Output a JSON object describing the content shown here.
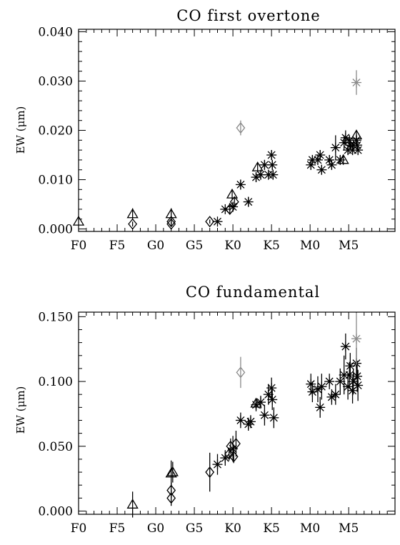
{
  "chart_data": [
    {
      "type": "scatter",
      "title": "CO first overtone",
      "ylabel": "EW (μm)",
      "xlabel": "",
      "x_ticks": [
        {
          "pos": 0,
          "label": "F0"
        },
        {
          "pos": 5,
          "label": "F5"
        },
        {
          "pos": 10,
          "label": "G0"
        },
        {
          "pos": 15,
          "label": "G5"
        },
        {
          "pos": 20,
          "label": "K0"
        },
        {
          "pos": 25,
          "label": "K5"
        },
        {
          "pos": 30,
          "label": "M0"
        },
        {
          "pos": 35,
          "label": "M5"
        }
      ],
      "y_ticks": [
        {
          "value": 0.0,
          "label": "0.000"
        },
        {
          "value": 0.01,
          "label": "0.010"
        },
        {
          "value": 0.02,
          "label": "0.020"
        },
        {
          "value": 0.03,
          "label": "0.030"
        },
        {
          "value": 0.04,
          "label": "0.040"
        }
      ],
      "xlim": [
        0,
        41
      ],
      "ylim": [
        -0.0005,
        0.0405
      ],
      "grid": false,
      "series": [
        {
          "marker": "triangle",
          "color": "#000000",
          "points": [
            [
              0,
              0.0015,
              0
            ],
            [
              7,
              0.003,
              0.0012
            ],
            [
              12,
              0.003,
              0.0012
            ],
            [
              19.9,
              0.007,
              0.001
            ],
            [
              23.2,
              0.0125,
              0.001
            ],
            [
              34.3,
              0.014,
              0.001
            ],
            [
              36,
              0.019,
              0.001
            ]
          ]
        },
        {
          "marker": "diamond",
          "color": "#000000",
          "points": [
            [
              7,
              0.001,
              0.0005
            ],
            [
              12,
              0.001,
              0.0005
            ],
            [
              12,
              0.0015,
              0.0005
            ],
            [
              17,
              0.0015,
              0.0004
            ],
            [
              19.6,
              0.004,
              0.001
            ],
            [
              20.2,
              0.0055,
              0.001
            ]
          ]
        },
        {
          "marker": "asterisk",
          "color": "#000000",
          "points": [
            [
              18,
              0.0015,
              0
            ],
            [
              19,
              0.004,
              0
            ],
            [
              20,
              0.0045,
              0.001
            ],
            [
              21,
              0.009,
              0.001
            ],
            [
              22,
              0.0055,
              0.001
            ],
            [
              23,
              0.0105,
              0.001
            ],
            [
              23.6,
              0.011,
              0.001
            ],
            [
              24.1,
              0.013,
              0.001
            ],
            [
              24.6,
              0.011,
              0.001
            ],
            [
              25,
              0.015,
              0.001
            ],
            [
              25.1,
              0.013,
              0.001
            ],
            [
              25.2,
              0.011,
              0.001
            ],
            [
              30.1,
              0.013,
              0.001
            ],
            [
              30.3,
              0.014,
              0.001
            ],
            [
              31,
              0.014,
              0.001
            ],
            [
              31.3,
              0.015,
              0.001
            ],
            [
              31.5,
              0.012,
              0.001
            ],
            [
              32.5,
              0.014,
              0.001
            ],
            [
              32.8,
              0.013,
              0.001
            ],
            [
              33.3,
              0.0165,
              0.0025
            ],
            [
              33.9,
              0.014,
              0.001
            ],
            [
              34.4,
              0.0175,
              0.0015
            ],
            [
              34.6,
              0.0185,
              0.0015
            ],
            [
              34.9,
              0.016,
              0.001
            ],
            [
              35.1,
              0.018,
              0.001
            ],
            [
              35.2,
              0.017,
              0.001
            ],
            [
              35.5,
              0.016,
              0.001
            ],
            [
              35.6,
              0.017,
              0.001
            ],
            [
              36,
              0.018,
              0.001
            ],
            [
              36.1,
              0.017,
              0.001
            ],
            [
              36.2,
              0.016,
              0.001
            ]
          ]
        },
        {
          "marker": "diamond",
          "color": "#8a8a8a",
          "points": [
            [
              21,
              0.0205,
              0.0015
            ]
          ]
        },
        {
          "marker": "asterisk",
          "color": "#8a8a8a",
          "points": [
            [
              36,
              0.0297,
              0.0025
            ]
          ]
        }
      ]
    },
    {
      "type": "scatter",
      "title": "CO fundamental",
      "ylabel": "EW (μm)",
      "xlabel": "",
      "x_ticks": [
        {
          "pos": 0,
          "label": "F0"
        },
        {
          "pos": 5,
          "label": "F5"
        },
        {
          "pos": 10,
          "label": "G0"
        },
        {
          "pos": 15,
          "label": "G5"
        },
        {
          "pos": 20,
          "label": "K0"
        },
        {
          "pos": 25,
          "label": "K5"
        },
        {
          "pos": 30,
          "label": "M0"
        },
        {
          "pos": 35,
          "label": "M5"
        }
      ],
      "y_ticks": [
        {
          "value": 0.0,
          "label": "0.000"
        },
        {
          "value": 0.05,
          "label": "0.050"
        },
        {
          "value": 0.1,
          "label": "0.100"
        },
        {
          "value": 0.15,
          "label": "0.150"
        }
      ],
      "xlim": [
        0,
        41
      ],
      "ylim": [
        -0.0025,
        0.1535
      ],
      "grid": false,
      "series": [
        {
          "marker": "triangle",
          "color": "#000000",
          "points": [
            [
              7,
              0.005,
              0.01
            ],
            [
              12,
              0.029,
              0.01
            ],
            [
              12.2,
              0.03,
              0.008
            ],
            [
              23,
              0.083,
              0.004
            ]
          ]
        },
        {
          "marker": "diamond",
          "color": "#000000",
          "points": [
            [
              12,
              0.01,
              0.006
            ],
            [
              12,
              0.016,
              0.006
            ],
            [
              17,
              0.03,
              0.015
            ],
            [
              19.5,
              0.044,
              0.005
            ],
            [
              19.7,
              0.05,
              0.006
            ],
            [
              20.1,
              0.042,
              0.005
            ],
            [
              20.4,
              0.052,
              0.01
            ]
          ]
        },
        {
          "marker": "asterisk",
          "color": "#000000",
          "points": [
            [
              18,
              0.036,
              0.008
            ],
            [
              19,
              0.041,
              0.006
            ],
            [
              20,
              0.048,
              0.01
            ],
            [
              21,
              0.07,
              0.006
            ],
            [
              22,
              0.067,
              0.005
            ],
            [
              22.3,
              0.069,
              0.005
            ],
            [
              23,
              0.082,
              0.005
            ],
            [
              23.6,
              0.084,
              0.005
            ],
            [
              24.1,
              0.074,
              0.008
            ],
            [
              24.6,
              0.09,
              0.008
            ],
            [
              25,
              0.095,
              0.008
            ],
            [
              25.1,
              0.086,
              0.008
            ],
            [
              25.3,
              0.072,
              0.008
            ],
            [
              30.1,
              0.098,
              0.008
            ],
            [
              30.3,
              0.092,
              0.008
            ],
            [
              31,
              0.094,
              0.01
            ],
            [
              31.3,
              0.08,
              0.008
            ],
            [
              31.5,
              0.096,
              0.01
            ],
            [
              32.5,
              0.1,
              0.006
            ],
            [
              32.8,
              0.088,
              0.006
            ],
            [
              33.3,
              0.09,
              0.008
            ],
            [
              33.9,
              0.1,
              0.01
            ],
            [
              34.4,
              0.105,
              0.015
            ],
            [
              34.6,
              0.127,
              0.01
            ],
            [
              34.9,
              0.096,
              0.01
            ],
            [
              35.1,
              0.105,
              0.01
            ],
            [
              35.2,
              0.112,
              0.01
            ],
            [
              35.5,
              0.093,
              0.01
            ],
            [
              35.6,
              0.1,
              0.01
            ],
            [
              36,
              0.114,
              0.012
            ],
            [
              36.1,
              0.104,
              0.012
            ],
            [
              36.2,
              0.097,
              0.012
            ]
          ]
        },
        {
          "marker": "diamond",
          "color": "#8a8a8a",
          "points": [
            [
              21,
              0.107,
              0.012
            ]
          ]
        },
        {
          "marker": "asterisk",
          "color": "#8a8a8a",
          "points": [
            [
              36,
              0.133,
              0.02
            ]
          ]
        }
      ]
    }
  ]
}
